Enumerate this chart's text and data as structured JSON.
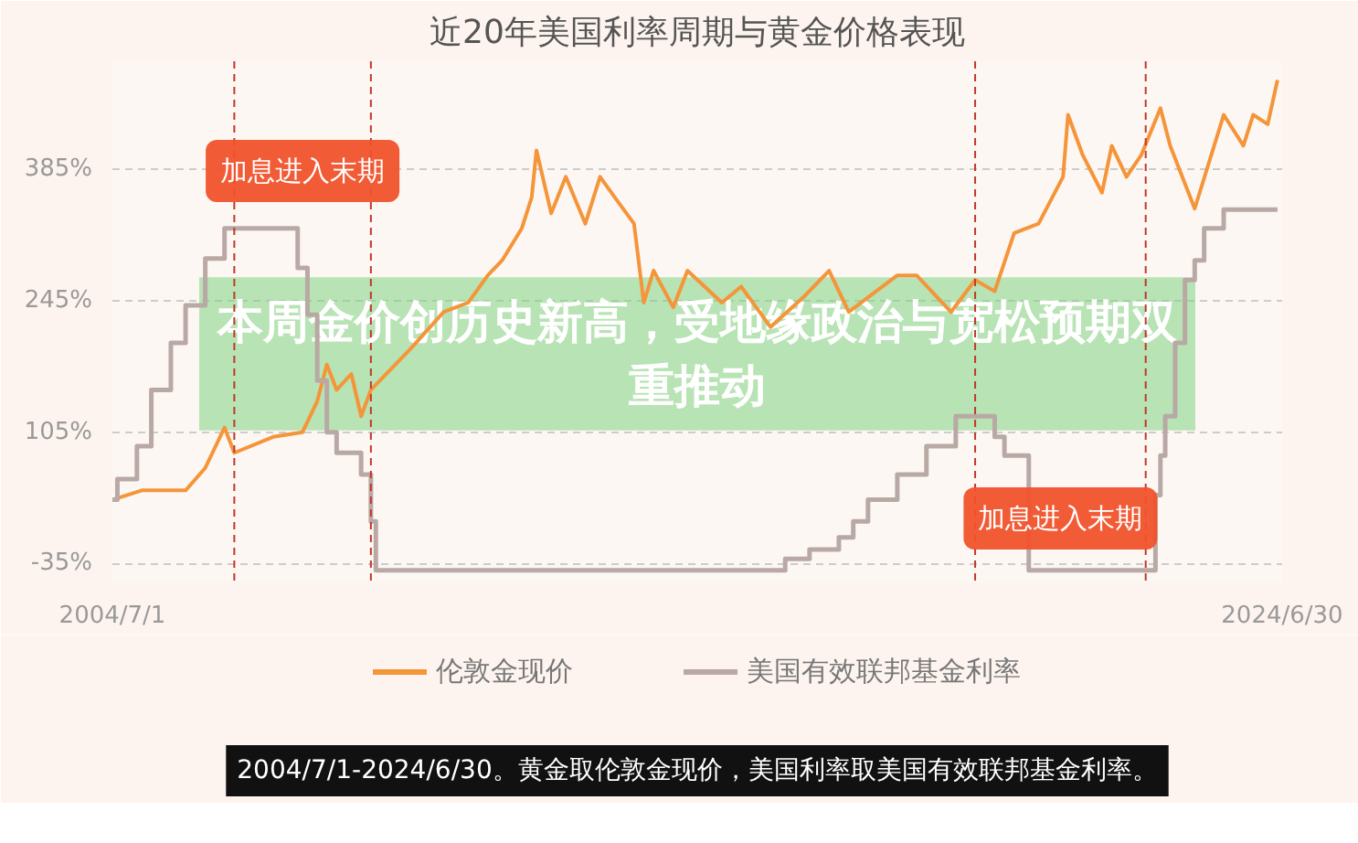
{
  "chart_data": {
    "type": "line",
    "title": "近20年美国利率周期与黄金价格表现",
    "xlim": [
      "2004-07-01",
      "2024-06-30"
    ],
    "xticks": [
      {
        "value": "2004-07-01",
        "label": "2004/7/1"
      },
      {
        "value": "2024-06-30",
        "label": "2024/6/30"
      }
    ],
    "ylim": [
      -55,
      500
    ],
    "yticks": [
      {
        "value": -35,
        "label": "-35%"
      },
      {
        "value": 105,
        "label": "105%"
      },
      {
        "value": 245,
        "label": "245%"
      },
      {
        "value": 385,
        "label": "385%"
      }
    ],
    "grid": "y",
    "legend": "bottom",
    "series": [
      {
        "name": "伦敦金现价",
        "color": "#f5953a",
        "x": [
          "2004-07",
          "2005-01",
          "2005-10",
          "2006-02",
          "2006-06",
          "2006-08",
          "2007-04",
          "2007-10",
          "2008-01",
          "2008-03",
          "2008-05",
          "2008-08",
          "2008-10",
          "2008-12",
          "2009-08",
          "2010-03",
          "2010-08",
          "2010-12",
          "2011-03",
          "2011-07",
          "2011-09",
          "2011-10",
          "2012-01",
          "2012-04",
          "2012-08",
          "2012-11",
          "2013-02",
          "2013-06",
          "2013-08",
          "2013-10",
          "2014-02",
          "2014-05",
          "2014-12",
          "2015-04",
          "2015-10",
          "2016-05",
          "2016-10",
          "2017-02",
          "2017-12",
          "2018-04",
          "2018-11",
          "2019-04",
          "2019-08",
          "2019-12",
          "2020-05",
          "2020-10",
          "2020-11",
          "2021-02",
          "2021-06",
          "2021-08",
          "2021-11",
          "2022-02",
          "2022-06",
          "2022-08",
          "2023-01",
          "2023-07",
          "2023-11",
          "2024-01",
          "2024-04",
          "2024-06"
        ],
        "values": [
          33,
          43,
          43,
          67,
          110,
          83,
          100,
          105,
          138,
          177,
          150,
          167,
          122,
          150,
          193,
          233,
          243,
          272,
          288,
          322,
          355,
          405,
          338,
          377,
          327,
          377,
          355,
          327,
          243,
          277,
          238,
          277,
          243,
          260,
          217,
          250,
          277,
          233,
          272,
          272,
          233,
          267,
          255,
          317,
          327,
          377,
          443,
          400,
          360,
          410,
          377,
          400,
          450,
          410,
          343,
          443,
          410,
          443,
          433,
          480
        ]
      },
      {
        "name": "美国有效联邦基金利率",
        "type": "step",
        "color": "#b9a9a5",
        "x": [
          "2004-07",
          "2004-08",
          "2004-12",
          "2005-03",
          "2005-07",
          "2005-10",
          "2006-02",
          "2006-06",
          "2007-09",
          "2007-11",
          "2008-01",
          "2008-03",
          "2008-05",
          "2008-10",
          "2008-12",
          "2009-01",
          "2016-01",
          "2016-06",
          "2016-12",
          "2017-03",
          "2017-06",
          "2017-12",
          "2018-06",
          "2018-12",
          "2019-08",
          "2019-10",
          "2020-03",
          "2022-03",
          "2022-05",
          "2022-06",
          "2022-07",
          "2022-09",
          "2022-11",
          "2023-01",
          "2023-03",
          "2023-07",
          "2024-06"
        ],
        "values": [
          33,
          55,
          90,
          150,
          200,
          240,
          290,
          322,
          280,
          230,
          160,
          105,
          83,
          60,
          10,
          -42,
          -30,
          -20,
          -7,
          10,
          33,
          60,
          90,
          122,
          100,
          80,
          -42,
          -42,
          38,
          80,
          122,
          200,
          267,
          288,
          322,
          342,
          342
        ]
      }
    ],
    "ref_lines": [
      {
        "axis": "x",
        "value": "2006-08",
        "color": "#c0392b",
        "line_style": "dashed"
      },
      {
        "axis": "x",
        "value": "2008-12",
        "color": "#c0392b",
        "line_style": "dashed"
      },
      {
        "axis": "x",
        "value": "2019-04",
        "color": "#c0392b",
        "line_style": "dashed"
      },
      {
        "axis": "x",
        "value": "2022-03",
        "color": "#c0392b",
        "line_style": "dashed"
      }
    ],
    "annotations": [
      "本周金价创历史新高，受地缘政治与宽松预期双重推动",
      "加息进入末期",
      "加息进入末期",
      "2004/7/1-2024/6/30。黄金取伦敦金现价，美国利率取美国有效联邦基金利率。"
    ]
  }
}
